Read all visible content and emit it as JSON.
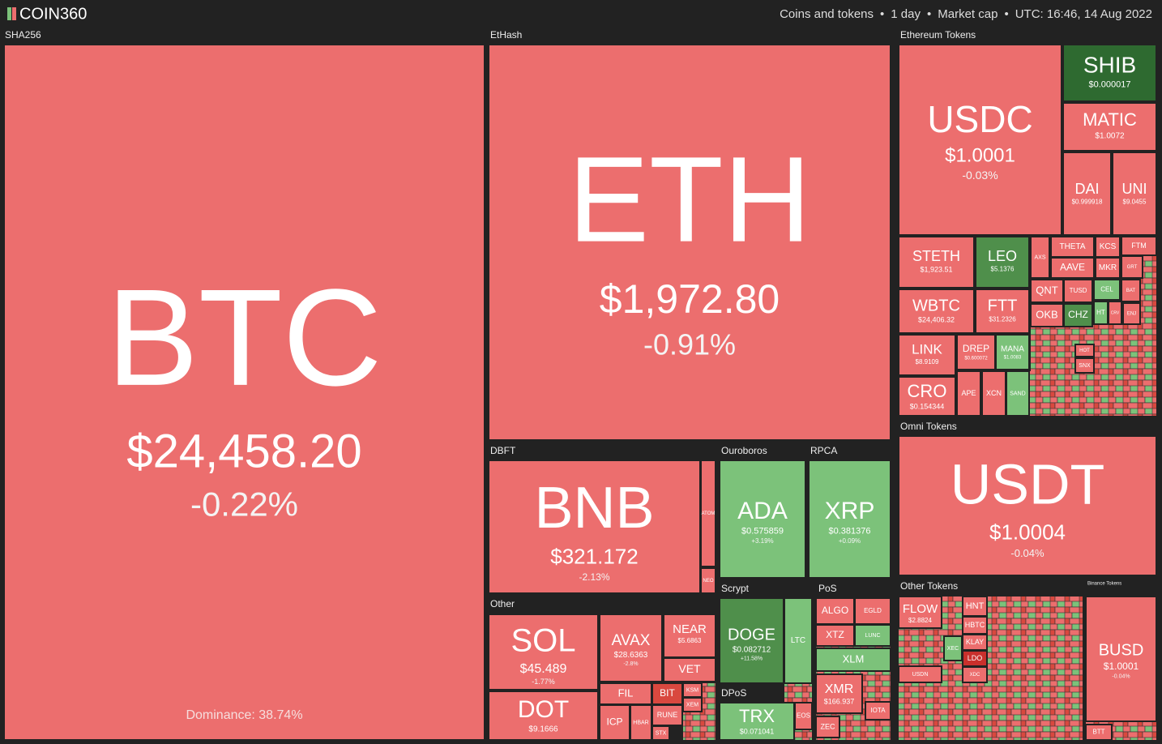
{
  "header": {
    "logo": "COIN360",
    "filters": [
      "Coins and tokens",
      "1 day",
      "Market cap",
      "UTC: 16:46, 14 Aug 2022"
    ],
    "separator": "•"
  },
  "groups": [
    {
      "name": "SHA256",
      "tiles": [
        {
          "symbol": "BTC",
          "price": "$24,458.20",
          "change": "-0.22%",
          "note": "Dominance: 38.74%",
          "color": "#ec6e6e"
        }
      ]
    },
    {
      "name": "EtHash",
      "tiles": [
        {
          "symbol": "ETH",
          "price": "$1,972.80",
          "change": "-0.91%",
          "color": "#ec6e6e"
        }
      ]
    },
    {
      "name": "DBFT",
      "tiles": [
        {
          "symbol": "BNB",
          "price": "$321.172",
          "change": "-2.13%",
          "color": "#ec6e6e"
        },
        {
          "symbol": "ATOM",
          "color": "#ec6e6e"
        },
        {
          "symbol": "NEO",
          "color": "#ec6e6e"
        }
      ]
    },
    {
      "name": "Ouroboros",
      "tiles": [
        {
          "symbol": "ADA",
          "price": "$0.575859",
          "change": "+3.19%",
          "color": "#7cc27a"
        }
      ]
    },
    {
      "name": "RPCA",
      "tiles": [
        {
          "symbol": "XRP",
          "price": "$0.381376",
          "change": "+0.09%",
          "color": "#7cc27a"
        }
      ]
    },
    {
      "name": "Scrypt",
      "tiles": [
        {
          "symbol": "DOGE",
          "price": "$0.082712",
          "change": "+11.58%",
          "color": "#4f8f4b"
        },
        {
          "symbol": "LTC",
          "color": "#7cc27a"
        }
      ]
    },
    {
      "name": "PoS",
      "tiles": [
        {
          "symbol": "ALGO",
          "color": "#ec6e6e"
        },
        {
          "symbol": "EGLD",
          "color": "#ec6e6e"
        },
        {
          "symbol": "XTZ",
          "color": "#ec6e6e"
        },
        {
          "symbol": "LUNC",
          "color": "#7cc27a"
        },
        {
          "symbol": "XLM",
          "color": "#7cc27a"
        },
        {
          "symbol": "XMR",
          "price": "$166.937",
          "color": "#ec6e6e"
        },
        {
          "symbol": "ZEC",
          "color": "#ec6e6e"
        },
        {
          "symbol": "IOTA",
          "color": "#ec6e6e"
        }
      ]
    },
    {
      "name": "DPoS",
      "tiles": [
        {
          "symbol": "TRX",
          "price": "$0.071041",
          "color": "#7cc27a"
        },
        {
          "symbol": "EOS",
          "color": "#ec6e6e"
        }
      ]
    },
    {
      "name": "Other",
      "tiles": [
        {
          "symbol": "SOL",
          "price": "$45.489",
          "change": "-1.77%",
          "color": "#ec6e6e"
        },
        {
          "symbol": "DOT",
          "price": "$9.1666",
          "color": "#ec6e6e"
        },
        {
          "symbol": "AVAX",
          "price": "$28.6363",
          "change": "-2.8%",
          "color": "#ec6e6e"
        },
        {
          "symbol": "NEAR",
          "price": "$5.6863",
          "color": "#ec6e6e"
        },
        {
          "symbol": "VET",
          "color": "#ec6e6e"
        },
        {
          "symbol": "FIL",
          "color": "#ec6e6e"
        },
        {
          "symbol": "BIT",
          "color": "#d9483f"
        },
        {
          "symbol": "ICP",
          "color": "#ec6e6e"
        },
        {
          "symbol": "HBAR",
          "color": "#ec6e6e"
        },
        {
          "symbol": "KSM",
          "color": "#ec6e6e"
        },
        {
          "symbol": "XEM",
          "color": "#ec6e6e"
        },
        {
          "symbol": "RUNE",
          "color": "#ec6e6e"
        },
        {
          "symbol": "STX",
          "color": "#ec6e6e"
        }
      ]
    },
    {
      "name": "Ethereum Tokens",
      "tiles": [
        {
          "symbol": "USDC",
          "price": "$1.0001",
          "change": "-0.03%",
          "color": "#ec6e6e"
        },
        {
          "symbol": "SHIB",
          "price": "$0.000017",
          "color": "#2e6a30"
        },
        {
          "symbol": "MATIC",
          "price": "$1.0072",
          "color": "#ec6e6e"
        },
        {
          "symbol": "DAI",
          "price": "$0.999918",
          "color": "#ec6e6e"
        },
        {
          "symbol": "UNI",
          "price": "$9.0455",
          "color": "#ec6e6e"
        },
        {
          "symbol": "STETH",
          "price": "$1,923.51",
          "color": "#ec6e6e"
        },
        {
          "symbol": "LEO",
          "price": "$5.1376",
          "color": "#4f8f4b"
        },
        {
          "symbol": "WBTC",
          "price": "$24,406.32",
          "color": "#ec6e6e"
        },
        {
          "symbol": "FTT",
          "price": "$31.2326",
          "color": "#ec6e6e"
        },
        {
          "symbol": "LINK",
          "price": "$8.9109",
          "color": "#ec6e6e"
        },
        {
          "symbol": "CRO",
          "price": "$0.154344",
          "color": "#ec6e6e"
        },
        {
          "symbol": "DREP",
          "price": "$0.600072",
          "color": "#ec6e6e"
        },
        {
          "symbol": "MANA",
          "price": "$1.0083",
          "color": "#7cc27a"
        },
        {
          "symbol": "APE",
          "color": "#ec6e6e"
        },
        {
          "symbol": "XCN",
          "color": "#ec6e6e"
        },
        {
          "symbol": "SAND",
          "color": "#7cc27a"
        },
        {
          "symbol": "AXS",
          "color": "#ec6e6e"
        },
        {
          "symbol": "THETA",
          "color": "#ec6e6e"
        },
        {
          "symbol": "AAVE",
          "color": "#ec6e6e"
        },
        {
          "symbol": "KCS",
          "color": "#ec6e6e"
        },
        {
          "symbol": "MKR",
          "color": "#ec6e6e"
        },
        {
          "symbol": "FTM",
          "color": "#ec6e6e"
        },
        {
          "symbol": "GRT",
          "color": "#ec6e6e"
        },
        {
          "symbol": "QNT",
          "color": "#ec6e6e"
        },
        {
          "symbol": "TUSD",
          "color": "#ec6e6e"
        },
        {
          "symbol": "CEL",
          "color": "#7cc27a"
        },
        {
          "symbol": "BAT",
          "color": "#ec6e6e"
        },
        {
          "symbol": "OKB",
          "color": "#ec6e6e"
        },
        {
          "symbol": "CHZ",
          "color": "#4f8f4b"
        },
        {
          "symbol": "HT",
          "color": "#7cc27a"
        },
        {
          "symbol": "CRV",
          "color": "#ec6e6e"
        },
        {
          "symbol": "ENJ",
          "color": "#ec6e6e"
        },
        {
          "symbol": "HOT",
          "color": "#ec6e6e"
        },
        {
          "symbol": "SNX",
          "color": "#ec6e6e"
        }
      ]
    },
    {
      "name": "Omni Tokens",
      "tiles": [
        {
          "symbol": "USDT",
          "price": "$1.0004",
          "change": "-0.04%",
          "color": "#ec6e6e"
        }
      ]
    },
    {
      "name": "Other Tokens",
      "tiles": [
        {
          "symbol": "FLOW",
          "price": "$2.8824",
          "color": "#ec6e6e"
        },
        {
          "symbol": "HNT",
          "color": "#ec6e6e"
        },
        {
          "symbol": "HBTC",
          "color": "#ec6e6e"
        },
        {
          "symbol": "KLAY",
          "color": "#ec6e6e"
        },
        {
          "symbol": "LDO",
          "color": "#c9302c"
        },
        {
          "symbol": "XEC",
          "color": "#7cc27a"
        },
        {
          "symbol": "USDN",
          "color": "#ec6e6e"
        },
        {
          "symbol": "XDC",
          "color": "#ec6e6e"
        }
      ]
    },
    {
      "name": "Binance Tokens",
      "tiles": [
        {
          "symbol": "BUSD",
          "price": "$1.0001",
          "change": "-0.04%",
          "color": "#ec6e6e"
        },
        {
          "symbol": "BTT",
          "color": "#ec6e6e"
        }
      ]
    }
  ]
}
